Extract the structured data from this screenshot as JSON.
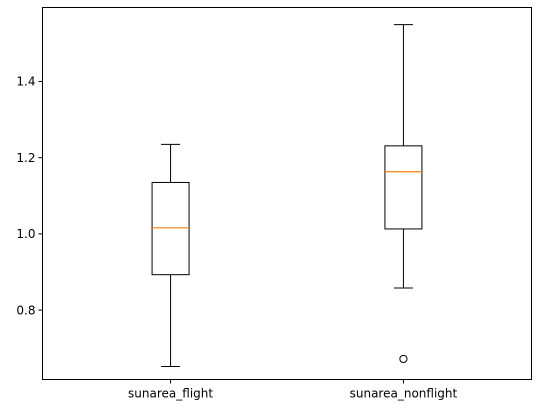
{
  "chart_data": {
    "type": "box",
    "title": "",
    "xlabel": "",
    "ylabel": "",
    "categories": [
      "sunarea_flight",
      "sunarea_nonflight"
    ],
    "boxes": [
      {
        "label": "sunarea_flight",
        "whisker_low": 0.652,
        "q1": 0.893,
        "median": 1.016,
        "q3": 1.135,
        "whisker_high": 1.235,
        "outliers": []
      },
      {
        "label": "sunarea_nonflight",
        "whisker_low": 0.858,
        "q1": 1.013,
        "median": 1.163,
        "q3": 1.231,
        "whisker_high": 1.549,
        "outliers": [
          0.672
        ]
      }
    ],
    "ylim": [
      0.618,
      1.594
    ],
    "yticks": [
      0.8,
      1.0,
      1.2,
      1.4
    ],
    "ytick_labels": [
      "0.8",
      "1.0",
      "1.2",
      "1.4"
    ],
    "grid": false,
    "colors": {
      "box": "#000000",
      "median": "#ff7f0e",
      "background": "#ffffff"
    }
  }
}
